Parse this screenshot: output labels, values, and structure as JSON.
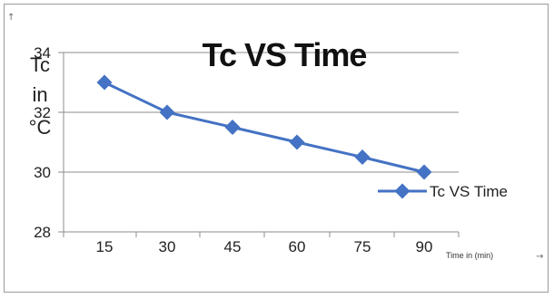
{
  "chart_data": {
    "type": "line",
    "title": "Tc VS Time",
    "ylabel_lines": [
      "Tc",
      "in",
      "°C"
    ],
    "xlabel": "Time in (min)",
    "categories": [
      "15",
      "30",
      "45",
      "60",
      "75",
      "90"
    ],
    "series": [
      {
        "name": "Tc VS Time",
        "values": [
          33,
          32,
          31.5,
          31,
          30.5,
          30
        ],
        "color": "#4472C4"
      }
    ],
    "yticks": [
      "28",
      "30",
      "32",
      "34"
    ],
    "ylim": [
      28,
      34
    ],
    "grid": true,
    "legend_position": "right"
  },
  "icons": {
    "y_axis_arrow": "↑",
    "x_axis_arrow": "→"
  }
}
